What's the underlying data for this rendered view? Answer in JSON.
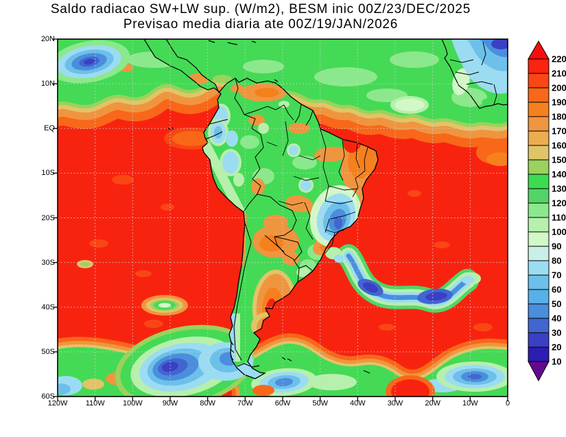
{
  "title": {
    "line1": "Saldo radiacao SW+LW sup. (W/m2), BESM inic 00Z/23/DEC/2025",
    "line2": "Previsao media diaria ate 00Z/19/JAN/2026"
  },
  "axes": {
    "y_ticks": [
      "20N",
      "10N",
      "EQ",
      "10S",
      "20S",
      "30S",
      "40S",
      "50S",
      "60S"
    ],
    "x_ticks": [
      "120W",
      "110W",
      "100W",
      "90W",
      "80W",
      "70W",
      "60W",
      "50W",
      "40W",
      "30W",
      "20W",
      "10W",
      "0"
    ]
  },
  "colorbar": {
    "labels": [
      "220",
      "210",
      "200",
      "190",
      "180",
      "170",
      "160",
      "150",
      "140",
      "130",
      "120",
      "110",
      "100",
      "90",
      "80",
      "70",
      "60",
      "50",
      "40",
      "30",
      "20",
      "10"
    ],
    "segment_colors": [
      "#fb2410",
      "#fa4614",
      "#f86818",
      "#f5801e",
      "#f09540",
      "#ecac50",
      "#e0c468",
      "#9ad25c",
      "#3cdc50",
      "#52d466",
      "#8ce88c",
      "#b6f0ac",
      "#d2f8c8",
      "#c8f0e8",
      "#9cdcf2",
      "#6cc0ea",
      "#58b0e8",
      "#4a8edc",
      "#4166d0",
      "#3a40c4",
      "#2c1cb0"
    ],
    "top_arrow_color": "#fa0c0c",
    "bottom_arrow_color": "#64098f"
  },
  "chart_data": {
    "type": "heatmap",
    "subtype": "filled-contour-map",
    "title": "Saldo radiacao SW+LW sup. (W/m2), BESM inic 00Z/23/DEC/2025",
    "subtitle": "Previsao media diaria ate 00Z/19/JAN/2026",
    "units": "W/m2",
    "model": "BESM",
    "init_time": "00Z/23/DEC/2025",
    "valid_through": "00Z/19/JAN/2026",
    "lon_range": [
      -120,
      0
    ],
    "lat_range": [
      -60,
      20
    ],
    "levels": [
      10,
      20,
      30,
      40,
      50,
      60,
      70,
      80,
      90,
      100,
      110,
      120,
      130,
      140,
      150,
      160,
      170,
      180,
      190,
      200,
      210,
      220
    ],
    "grid_estimate": {
      "lons": [
        -120,
        -110,
        -100,
        -90,
        -80,
        -70,
        -60,
        -50,
        -40,
        -30,
        -20,
        -10,
        0
      ],
      "lats": [
        20,
        10,
        0,
        -10,
        -20,
        -30,
        -40,
        -50,
        -60
      ],
      "values_wm2": [
        [
          130,
          80,
          140,
          140,
          135,
          140,
          140,
          140,
          135,
          130,
          140,
          60,
          30
        ],
        [
          120,
          110,
          140,
          170,
          180,
          140,
          130,
          140,
          135,
          140,
          130,
          80,
          90
        ],
        [
          200,
          210,
          200,
          190,
          200,
          90,
          140,
          150,
          180,
          180,
          180,
          170,
          170
        ],
        [
          225,
          225,
          225,
          225,
          225,
          140,
          160,
          140,
          180,
          210,
          225,
          210,
          200
        ],
        [
          225,
          225,
          225,
          225,
          225,
          180,
          170,
          140,
          70,
          225,
          225,
          225,
          225
        ],
        [
          225,
          225,
          225,
          225,
          225,
          160,
          200,
          180,
          110,
          225,
          225,
          210,
          225
        ],
        [
          225,
          225,
          225,
          110,
          225,
          130,
          180,
          225,
          225,
          60,
          90,
          200,
          225
        ],
        [
          225,
          225,
          225,
          180,
          60,
          80,
          190,
          225,
          170,
          120,
          180,
          90,
          80
        ],
        [
          90,
          160,
          120,
          70,
          200,
          110,
          70,
          100,
          110,
          200,
          200,
          70,
          80
        ]
      ]
    },
    "features": [
      "Green ITCZ cloud band (110-150 W/m2) spanning 20N-5N across Pacific and Atlantic",
      "Dark blue minimum (30-70) near 113W 15N",
      "Dark blue minimum over West Africa near 10W-0, 15-20N",
      "Clear-sky maxima >220 (red) over subtropical Pacific and South Atlantic oceans",
      "Blue minimum (60-90) over SE Brazil around 45W 21S",
      "Blue storm-track arc (50-90) from 42W 32S to 15W 37S",
      "Blue minimum west of southern Chile near 85W 52S",
      "Mixed green/cyan/blue band along 55S-60S",
      "Amazon basin greens (120-150) with orange patches (160-190) over NE Brazil, Bolivia and central Argentina"
    ],
    "legend_position": "right-vertical-colorbar",
    "grid_lines": "dotted, every 10 degrees"
  }
}
